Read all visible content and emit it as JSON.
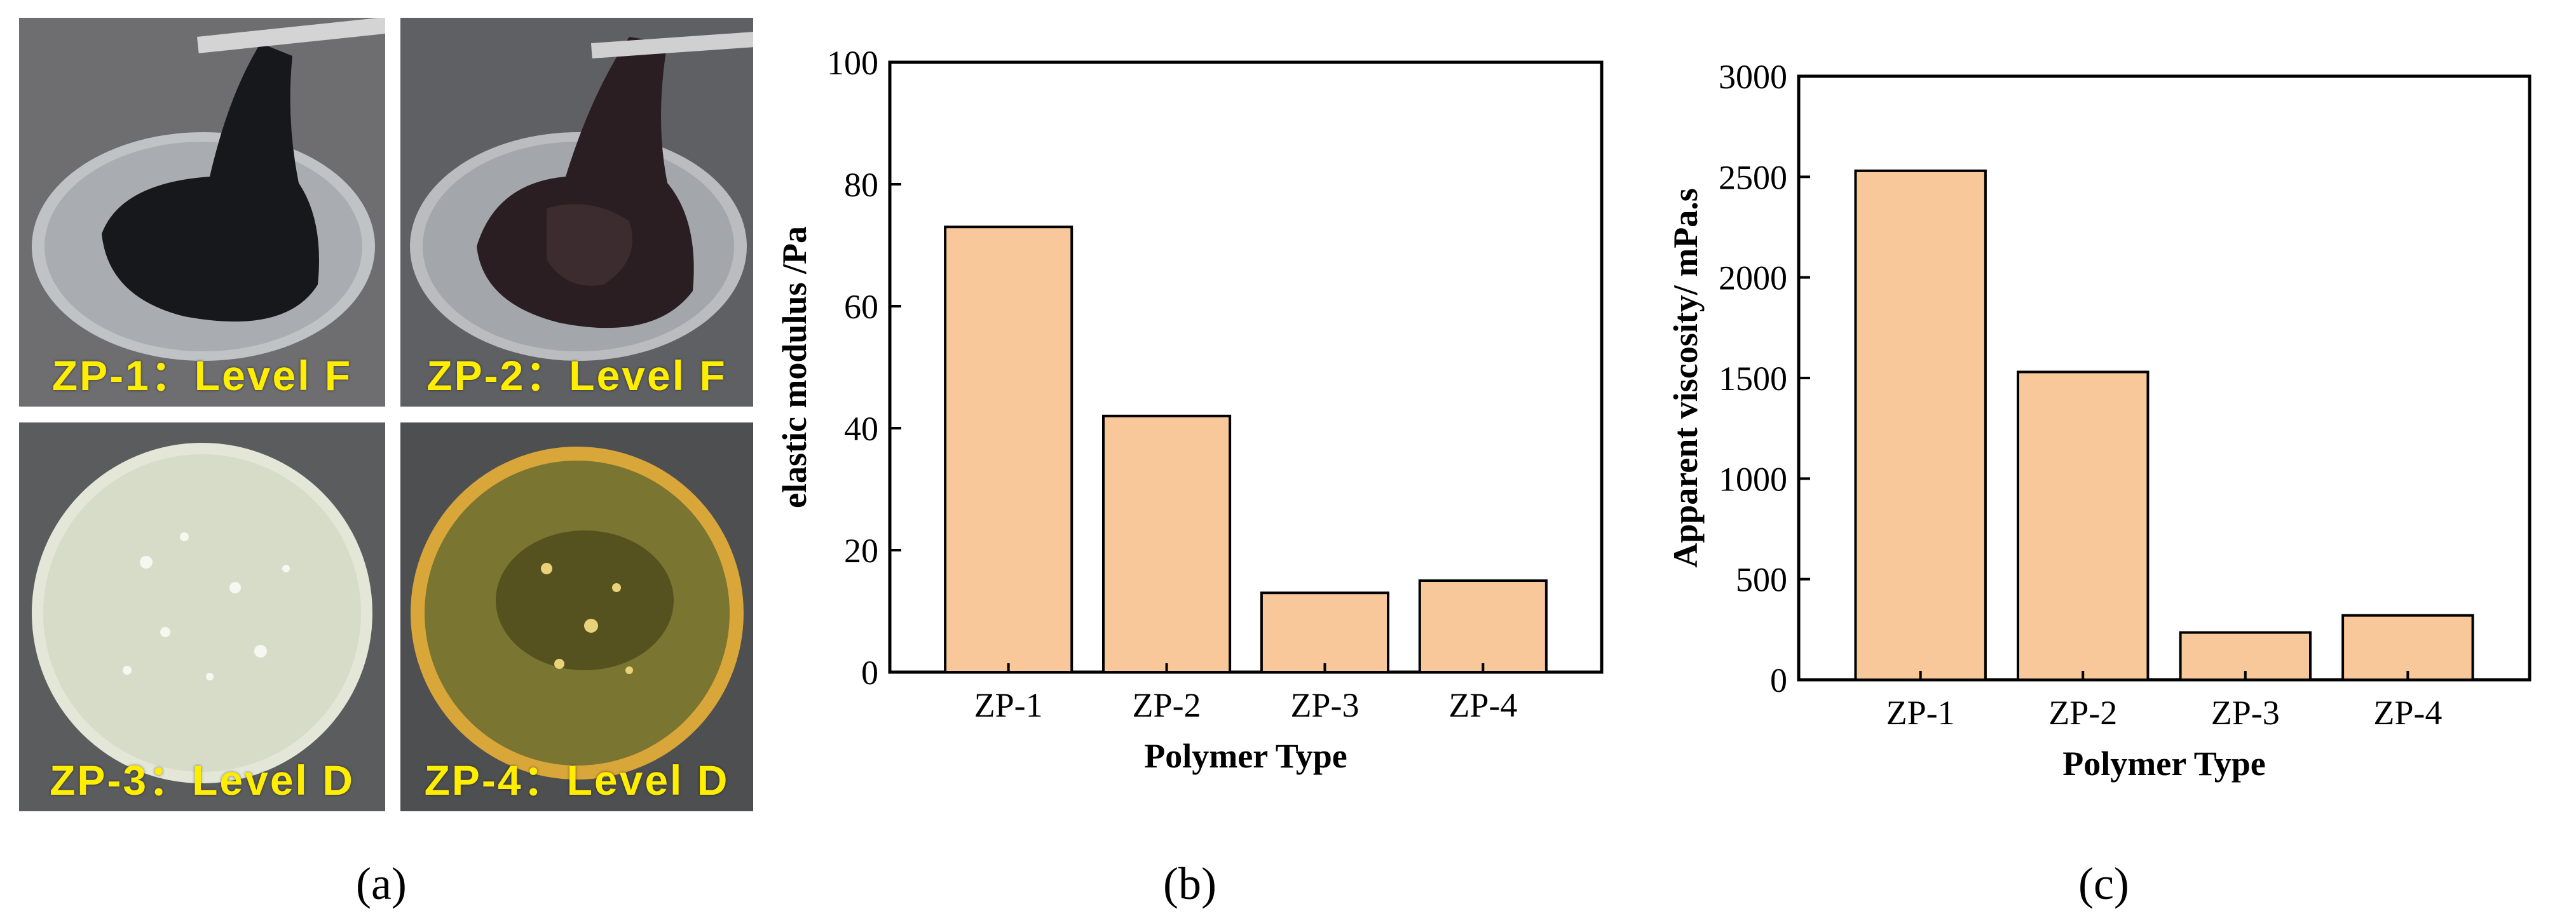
{
  "panel_a": {
    "photos": [
      {
        "label": "ZP-1：Level F"
      },
      {
        "label": "ZP-2：Level F"
      },
      {
        "label": "ZP-3：Level D"
      },
      {
        "label": "ZP-4：Level D"
      }
    ],
    "caption": "(a)"
  },
  "panel_b": {
    "caption": "(b)"
  },
  "panel_c": {
    "caption": "(c)"
  },
  "colors": {
    "bar_fill": "#f8c89a",
    "bar_stroke": "#000000",
    "label_yellow": "#ffee00"
  },
  "chart_data": [
    {
      "type": "bar",
      "categories": [
        "ZP-1",
        "ZP-2",
        "ZP-3",
        "ZP-4"
      ],
      "values": [
        73,
        42,
        13,
        15
      ],
      "title": "",
      "xlabel": "Polymer Type",
      "ylabel": "elastic modulus /Pa",
      "ylim": [
        0,
        100
      ],
      "yticks": [
        0,
        20,
        40,
        60,
        80,
        100
      ],
      "grid": false
    },
    {
      "type": "bar",
      "categories": [
        "ZP-1",
        "ZP-2",
        "ZP-3",
        "ZP-4"
      ],
      "values": [
        2530,
        1530,
        235,
        320
      ],
      "title": "",
      "xlabel": "Polymer Type",
      "ylabel": "Apparent viscosity/ mPa.s",
      "ylim": [
        0,
        3000
      ],
      "yticks": [
        0,
        500,
        1000,
        1500,
        2000,
        2500,
        3000
      ],
      "grid": false
    }
  ]
}
